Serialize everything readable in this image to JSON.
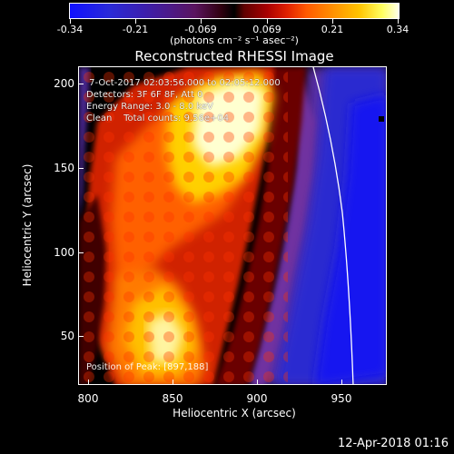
{
  "colorbar": {
    "tick_labels": [
      "-0.34",
      "-0.21",
      "-0.069",
      "0.069",
      "0.21",
      "0.34"
    ],
    "units": "(photons cm⁻² s⁻¹ asec⁻²)"
  },
  "plot": {
    "title": "Reconstructed RHESSI Image",
    "info": {
      "time": " 7-Oct-2017 02:03:56.000 to 02:05:12.000",
      "detectors": "Detectors: 3F 6F 8F, Att 0",
      "energy": "Energy Range: 3.0 - 8.0 keV",
      "clean": "Clean    Total counts: 9.56e+04"
    },
    "peak": "Position of Peak: [897,188]",
    "x_axis": {
      "label": "Heliocentric X (arcsec)",
      "ticks": [
        "800",
        "850",
        "900",
        "950"
      ]
    },
    "y_axis": {
      "label": "Heliocentric Y (arcsec)",
      "ticks": [
        "200",
        "150",
        "100",
        "50"
      ]
    }
  },
  "footer": {
    "timestamp": "12-Apr-2018 01:16"
  },
  "colors": {
    "limb": "#ffffff",
    "frame": "#ffffff"
  }
}
